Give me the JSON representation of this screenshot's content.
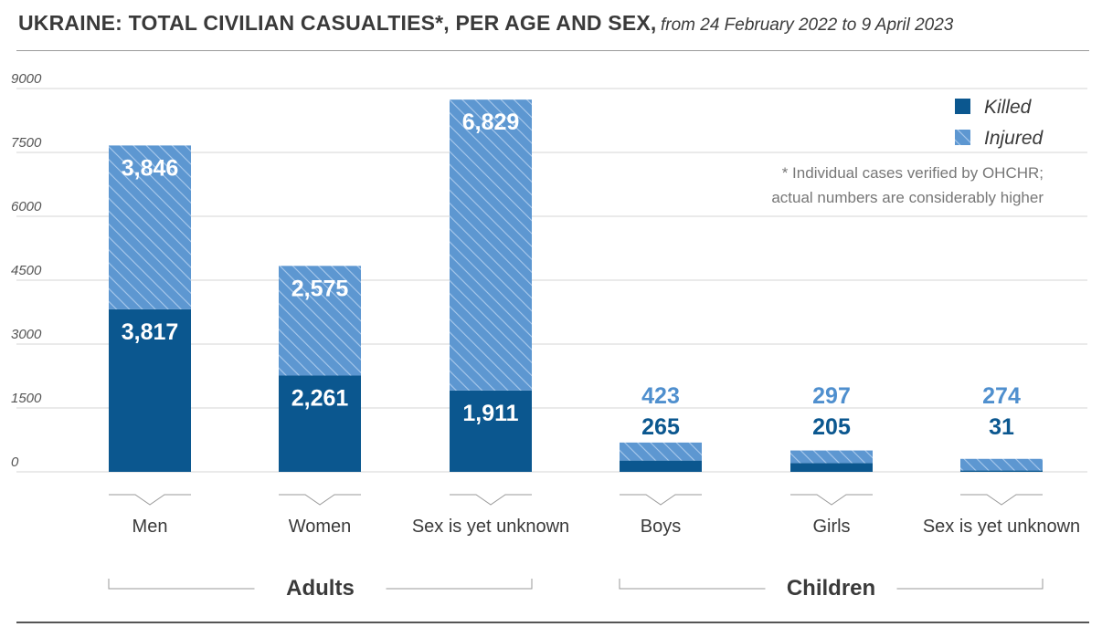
{
  "header": {
    "title": "UKRAINE: TOTAL CIVILIAN CASUALTIES*, PER AGE AND SEX,",
    "subtitle": "from 24 February 2022 to 9 April 2023"
  },
  "note": {
    "line1": "* Individual cases verified by OHCHR;",
    "line2": "actual numbers are considerably higher"
  },
  "chart_data": {
    "type": "bar",
    "stacked": true,
    "categories": [
      "Men",
      "Women",
      "Sex is yet unknown",
      "Boys",
      "Girls",
      "Sex is yet unknown"
    ],
    "series": [
      {
        "name": "Killed",
        "values": [
          3817,
          2261,
          1911,
          265,
          205,
          31
        ],
        "labels": [
          "3,817",
          "2,261",
          "1,911",
          "265",
          "205",
          "31"
        ]
      },
      {
        "name": "Injured",
        "values": [
          3846,
          2575,
          6829,
          423,
          297,
          274
        ],
        "labels": [
          "3,846",
          "2,575",
          "6,829",
          "423",
          "297",
          "274"
        ]
      }
    ],
    "groups": [
      {
        "label": "Adults",
        "categories": [
          0,
          1,
          2
        ]
      },
      {
        "label": "Children",
        "categories": [
          3,
          4,
          5
        ]
      }
    ],
    "yticks": [
      "0",
      "1500",
      "3000",
      "4500",
      "6000",
      "7500",
      "9000"
    ],
    "ylim": [
      0,
      9000
    ],
    "grid": true,
    "legend_position": "top-right",
    "colors": {
      "killed": "#0b578f",
      "injured": "#5d97d1",
      "hatch": "#a9c9ec",
      "inj_label": "#4f8fce"
    }
  }
}
